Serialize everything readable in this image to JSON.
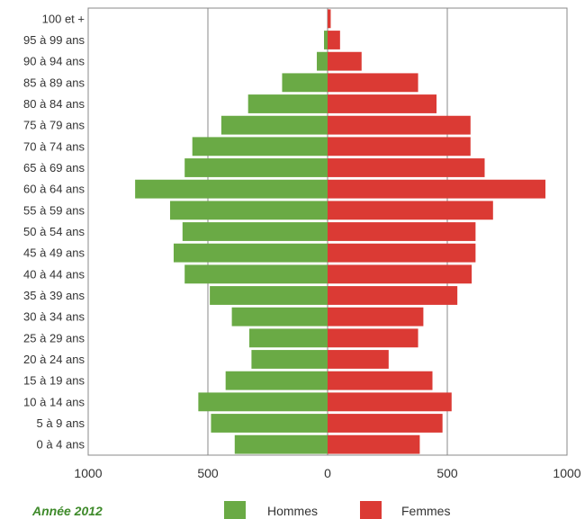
{
  "chart_data": {
    "type": "bar",
    "orientation": "horizontal",
    "caption": "Année 2012",
    "categories": [
      "0 à 4 ans",
      "5 à 9 ans",
      "10 à 14 ans",
      "15 à 19 ans",
      "20 à 24 ans",
      "25 à 29 ans",
      "30 à 34 ans",
      "35 à 39 ans",
      "40 à 44 ans",
      "45 à 49 ans",
      "50 à 54 ans",
      "55 à 59 ans",
      "60 à 64 ans",
      "65 à 69 ans",
      "70 à 74 ans",
      "75 à 79 ans",
      "80 à 84 ans",
      "85 à 89 ans",
      "90 à 94 ans",
      "95 à 99 ans",
      "100 et +"
    ],
    "series": [
      {
        "name": "Hommes",
        "color": "#6aaa45",
        "side": "left",
        "values": [
          388,
          487,
          540,
          426,
          318,
          327,
          400,
          492,
          597,
          643,
          606,
          658,
          804,
          597,
          565,
          444,
          332,
          190,
          45,
          15,
          0
        ]
      },
      {
        "name": "Femmes",
        "color": "#db3a34",
        "side": "right",
        "values": [
          385,
          480,
          518,
          438,
          255,
          378,
          400,
          542,
          602,
          618,
          618,
          691,
          910,
          656,
          597,
          597,
          455,
          378,
          142,
          52,
          13
        ]
      }
    ],
    "x_ticks": [
      "1000",
      "500",
      "0",
      "500",
      "1000"
    ],
    "xlim": [
      -1000,
      1000
    ],
    "grid": "vertical at 500 and 0",
    "legend_position": "bottom"
  }
}
